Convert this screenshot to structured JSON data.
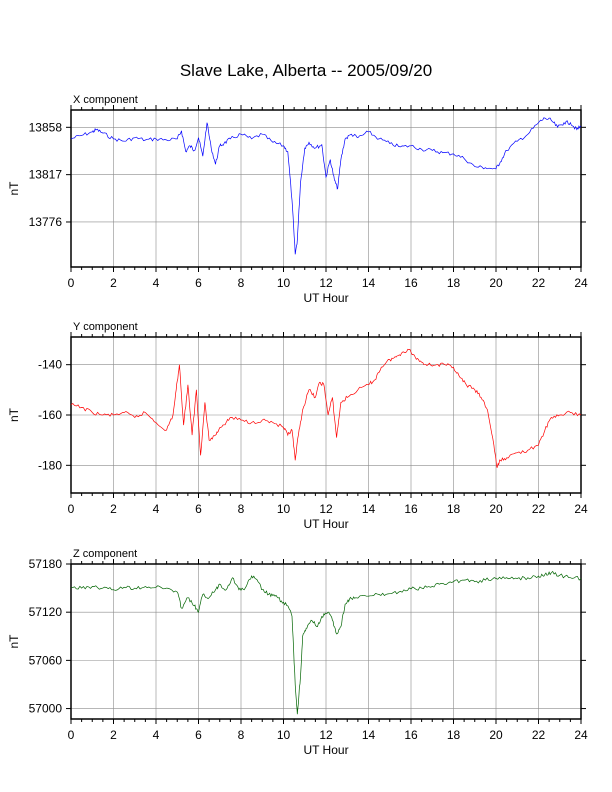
{
  "title": "Slave Lake, Alberta -- 2005/09/20",
  "chart_data": [
    {
      "type": "line",
      "panel_label": "X component",
      "xlabel": "UT Hour",
      "ylabel": "nT",
      "xlim": [
        0,
        24
      ],
      "ylim": [
        13737,
        13873
      ],
      "xticks": [
        0,
        2,
        4,
        6,
        8,
        10,
        12,
        14,
        16,
        18,
        20,
        22,
        24
      ],
      "yticks": [
        13776,
        13817,
        13858
      ],
      "grid": true,
      "color": "#0000ff",
      "series": [
        {
          "x": [
            0,
            0.5,
            1,
            1.2,
            1.5,
            2,
            2.5,
            3,
            3.5,
            4,
            4.5,
            5,
            5.2,
            5.4,
            5.6,
            5.8,
            6,
            6.2,
            6.4,
            6.6,
            6.8,
            7,
            7.2,
            7.5,
            8,
            8.5,
            9,
            9.5,
            10,
            10.2,
            10.4,
            10.55,
            10.65,
            10.8,
            11,
            11.2,
            11.5,
            11.8,
            12,
            12.2,
            12.4,
            12.55,
            12.7,
            12.9,
            13.2,
            13.5,
            14,
            14.5,
            15,
            15.5,
            16,
            16.5,
            17,
            17.5,
            18,
            18.5,
            19,
            19.5,
            20,
            20.2,
            20.5,
            21,
            21.5,
            22,
            22.3,
            22.6,
            22.9,
            23.2,
            23.5,
            23.8,
            24
          ],
          "y": [
            13848,
            13851,
            13854,
            13856,
            13853,
            13848,
            13846,
            13849,
            13847,
            13848,
            13847,
            13848,
            13855,
            13837,
            13842,
            13838,
            13849,
            13833,
            13862,
            13840,
            13826,
            13842,
            13844,
            13848,
            13852,
            13848,
            13852,
            13845,
            13842,
            13837,
            13795,
            13748,
            13760,
            13810,
            13840,
            13845,
            13840,
            13843,
            13815,
            13830,
            13812,
            13805,
            13830,
            13848,
            13852,
            13849,
            13854,
            13848,
            13844,
            13841,
            13842,
            13839,
            13838,
            13836,
            13835,
            13831,
            13824,
            13823,
            13822,
            13828,
            13838,
            13846,
            13852,
            13862,
            13866,
            13864,
            13858,
            13862,
            13862,
            13856,
            13859
          ]
        }
      ]
    },
    {
      "type": "line",
      "panel_label": "Y component",
      "xlabel": "UT Hour",
      "ylabel": "nT",
      "xlim": [
        0,
        24
      ],
      "ylim": [
        -191,
        -129
      ],
      "xticks": [
        0,
        2,
        4,
        6,
        8,
        10,
        12,
        14,
        16,
        18,
        20,
        22,
        24
      ],
      "yticks": [
        -180,
        -160,
        -140
      ],
      "grid": true,
      "color": "#ff0000",
      "series": [
        {
          "x": [
            0,
            0.5,
            1,
            1.5,
            2,
            2.5,
            3,
            3.5,
            4,
            4.5,
            4.8,
            4.95,
            5.1,
            5.3,
            5.5,
            5.7,
            5.9,
            6.1,
            6.3,
            6.5,
            6.8,
            7,
            7.3,
            7.5,
            8,
            8.5,
            9,
            9.5,
            10,
            10.2,
            10.4,
            10.55,
            10.7,
            10.9,
            11.2,
            11.5,
            11.7,
            11.9,
            12.1,
            12.3,
            12.5,
            12.7,
            13,
            13.5,
            14,
            14.3,
            14.6,
            15,
            15.3,
            15.6,
            15.9,
            16.2,
            16.5,
            16.8,
            17.2,
            17.6,
            18,
            18.3,
            18.6,
            19,
            19.3,
            19.6,
            19.9,
            20.05,
            20.2,
            20.5,
            21,
            21.5,
            22,
            22.3,
            22.6,
            23,
            23.5,
            24
          ],
          "y": [
            -156,
            -157,
            -159,
            -160,
            -160,
            -159,
            -161,
            -159,
            -163,
            -166,
            -160,
            -150,
            -140,
            -164,
            -148,
            -168,
            -150,
            -176,
            -155,
            -170,
            -168,
            -165,
            -163,
            -161,
            -162,
            -163,
            -162,
            -163,
            -165,
            -168,
            -166,
            -178,
            -168,
            -158,
            -150,
            -153,
            -147,
            -148,
            -160,
            -153,
            -169,
            -155,
            -153,
            -150,
            -148,
            -146,
            -141,
            -138,
            -137,
            -135,
            -134,
            -137,
            -139,
            -140,
            -140,
            -140,
            -141,
            -145,
            -148,
            -150,
            -153,
            -158,
            -172,
            -181,
            -178,
            -177,
            -175,
            -174,
            -172,
            -166,
            -161,
            -160,
            -159,
            -160
          ]
        }
      ]
    },
    {
      "type": "line",
      "panel_label": "Z component",
      "xlabel": "UT Hour",
      "ylabel": "nT",
      "xlim": [
        0,
        24
      ],
      "ylim": [
        56987,
        57180
      ],
      "xticks": [
        0,
        2,
        4,
        6,
        8,
        10,
        12,
        14,
        16,
        18,
        20,
        22,
        24
      ],
      "yticks": [
        57000,
        57060,
        57120,
        57180
      ],
      "grid": true,
      "color": "#006400",
      "series": [
        {
          "x": [
            0,
            0.5,
            1,
            1.5,
            2,
            2.5,
            3,
            3.5,
            4,
            4.5,
            5,
            5.2,
            5.5,
            5.8,
            6,
            6.2,
            6.5,
            6.8,
            7,
            7.3,
            7.6,
            7.9,
            8.2,
            8.5,
            8.8,
            9,
            9.3,
            9.6,
            9.9,
            10.2,
            10.4,
            10.55,
            10.65,
            10.8,
            10.9,
            11.1,
            11.3,
            11.6,
            11.9,
            12.1,
            12.3,
            12.5,
            12.7,
            12.9,
            13.1,
            13.4,
            14,
            14.5,
            15,
            15.5,
            16,
            16.5,
            17,
            17.5,
            18,
            18.5,
            19,
            19.5,
            20,
            20.5,
            21,
            21.5,
            22,
            22.3,
            22.6,
            23,
            23.5,
            24
          ],
          "y": [
            57151,
            57150,
            57152,
            57150,
            57148,
            57151,
            57150,
            57152,
            57151,
            57150,
            57145,
            57125,
            57138,
            57128,
            57120,
            57142,
            57138,
            57148,
            57155,
            57148,
            57163,
            57148,
            57150,
            57165,
            57158,
            57148,
            57142,
            57140,
            57134,
            57128,
            57115,
            57030,
            56993,
            57040,
            57090,
            57100,
            57110,
            57102,
            57118,
            57120,
            57110,
            57093,
            57102,
            57130,
            57136,
            57138,
            57140,
            57142,
            57143,
            57146,
            57149,
            57150,
            57152,
            57156,
            57158,
            57160,
            57158,
            57160,
            57162,
            57163,
            57162,
            57163,
            57165,
            57167,
            57169,
            57166,
            57163,
            57162
          ]
        }
      ]
    }
  ]
}
